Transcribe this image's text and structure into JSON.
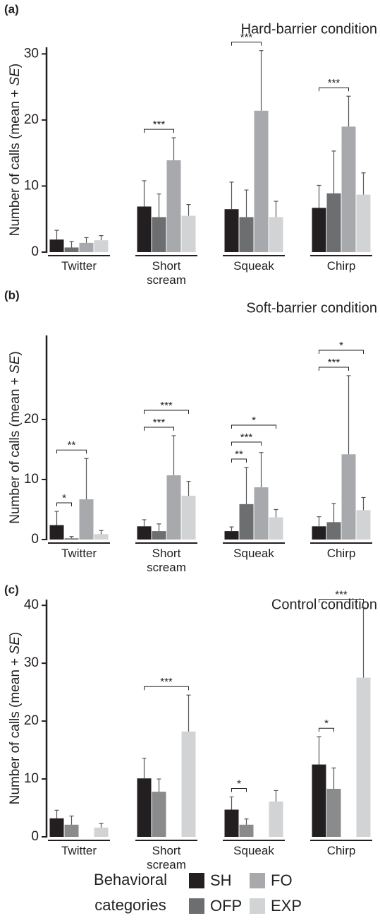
{
  "chart_data": [
    {
      "type": "bar",
      "panel_label": "(a)",
      "title": "Hard-barrier condition",
      "ylabel": [
        "Number of calls (mean + ",
        "SE",
        ")"
      ],
      "categories": [
        "Twitter",
        "Short scream",
        "Squeak",
        "Chirp"
      ],
      "ylim": [
        0,
        31
      ],
      "yticks": [
        0,
        10,
        20,
        30
      ],
      "series": [
        {
          "name": "SH",
          "color": "#231f20",
          "values": [
            1.9,
            6.9,
            6.5,
            6.7
          ],
          "errors": [
            1.4,
            3.9,
            4.1,
            3.4
          ]
        },
        {
          "name": "OFP",
          "color": "#6d6e70",
          "values": [
            0.7,
            5.3,
            5.3,
            8.9
          ],
          "errors": [
            0.9,
            3.5,
            4.1,
            6.4
          ]
        },
        {
          "name": "FO",
          "color": "#a7a9ac",
          "values": [
            1.4,
            13.9,
            21.4,
            19.0
          ],
          "errors": [
            0.8,
            3.4,
            9.1,
            4.6
          ]
        },
        {
          "name": "EXP",
          "color": "#d1d3d4",
          "values": [
            1.8,
            5.5,
            5.3,
            8.7
          ],
          "errors": [
            0.7,
            1.7,
            2.4,
            3.3
          ]
        }
      ],
      "annotations": [
        {
          "category": "Short scream",
          "groups": [
            "SH",
            "FO"
          ],
          "label": "***"
        },
        {
          "category": "Squeak",
          "groups": [
            "SH",
            "FO"
          ],
          "label": "***"
        },
        {
          "category": "Chirp",
          "groups": [
            "SH",
            "FO"
          ],
          "label": "***"
        }
      ]
    },
    {
      "type": "bar",
      "panel_label": "(b)",
      "title": "Soft-barrier condition",
      "ylabel": [
        "Number of calls (mean + ",
        "SE",
        ")"
      ],
      "categories": [
        "Twitter",
        "Short scream",
        "Squeak",
        "Chirp"
      ],
      "ylim": [
        0,
        34
      ],
      "yticks": [
        0,
        10,
        20
      ],
      "series": [
        {
          "name": "SH",
          "color": "#231f20",
          "values": [
            2.4,
            2.2,
            1.4,
            2.2
          ],
          "errors": [
            2.3,
            1.1,
            0.7,
            1.6
          ]
        },
        {
          "name": "OFP",
          "color": "#6d6e70",
          "values": [
            0.2,
            1.4,
            5.9,
            2.9
          ],
          "errors": [
            0.3,
            1.2,
            6.1,
            3.1
          ]
        },
        {
          "name": "FO",
          "color": "#a7a9ac",
          "values": [
            6.7,
            10.7,
            8.7,
            14.2
          ],
          "errors": [
            6.8,
            6.6,
            5.8,
            13.1
          ]
        },
        {
          "name": "EXP",
          "color": "#d1d3d4",
          "values": [
            0.9,
            7.3,
            3.7,
            4.9
          ],
          "errors": [
            0.6,
            2.4,
            1.3,
            2.1
          ]
        }
      ],
      "annotations": [
        {
          "category": "Twitter",
          "groups": [
            "SH",
            "OFP"
          ],
          "label": "*"
        },
        {
          "category": "Twitter",
          "groups": [
            "SH",
            "FO"
          ],
          "label": "**"
        },
        {
          "category": "Short scream",
          "groups": [
            "SH",
            "FO"
          ],
          "label": "***"
        },
        {
          "category": "Short scream",
          "groups": [
            "SH",
            "EXP"
          ],
          "label": "***"
        },
        {
          "category": "Squeak",
          "groups": [
            "SH",
            "OFP"
          ],
          "label": "**"
        },
        {
          "category": "Squeak",
          "groups": [
            "SH",
            "FO"
          ],
          "label": "***"
        },
        {
          "category": "Squeak",
          "groups": [
            "SH",
            "EXP"
          ],
          "label": "*"
        },
        {
          "category": "Chirp",
          "groups": [
            "SH",
            "FO"
          ],
          "label": "***"
        },
        {
          "category": "Chirp",
          "groups": [
            "SH",
            "EXP"
          ],
          "label": "*"
        }
      ]
    },
    {
      "type": "bar",
      "panel_label": "(c)",
      "title": "Control condition",
      "ylabel": [
        "Number of calls (mean + ",
        "SE",
        ")"
      ],
      "categories": [
        "Twitter",
        "Short scream",
        "Squeak",
        "Chirp"
      ],
      "ylim": [
        0,
        41
      ],
      "yticks": [
        0,
        10,
        20,
        30,
        40
      ],
      "series": [
        {
          "name": "SH",
          "color": "#231f20",
          "values": [
            3.2,
            10.1,
            4.7,
            12.5
          ],
          "errors": [
            1.4,
            3.5,
            2.2,
            4.8
          ]
        },
        {
          "name": "OFP",
          "color": "#8a8b8d",
          "values": [
            2.1,
            7.8,
            2.1,
            8.3
          ],
          "errors": [
            1.5,
            2.2,
            1.0,
            3.6
          ]
        },
        {
          "name": "FO",
          "color": "#a7a9ac",
          "values": [
            null,
            null,
            null,
            null
          ],
          "errors": [
            null,
            null,
            null,
            null
          ]
        },
        {
          "name": "EXP",
          "color": "#d1d3d4",
          "values": [
            1.6,
            18.2,
            6.1,
            27.5
          ],
          "errors": [
            0.7,
            6.3,
            1.9,
            12.1
          ]
        }
      ],
      "annotations": [
        {
          "category": "Short scream",
          "groups": [
            "SH",
            "EXP"
          ],
          "label": "***"
        },
        {
          "category": "Squeak",
          "groups": [
            "SH",
            "OFP"
          ],
          "label": "*"
        },
        {
          "category": "Chirp",
          "groups": [
            "SH",
            "OFP"
          ],
          "label": "*"
        },
        {
          "category": "Chirp",
          "groups": [
            "SH",
            "EXP"
          ],
          "label": "***"
        }
      ]
    }
  ],
  "legend": {
    "title": "Behavioral categories"
  }
}
